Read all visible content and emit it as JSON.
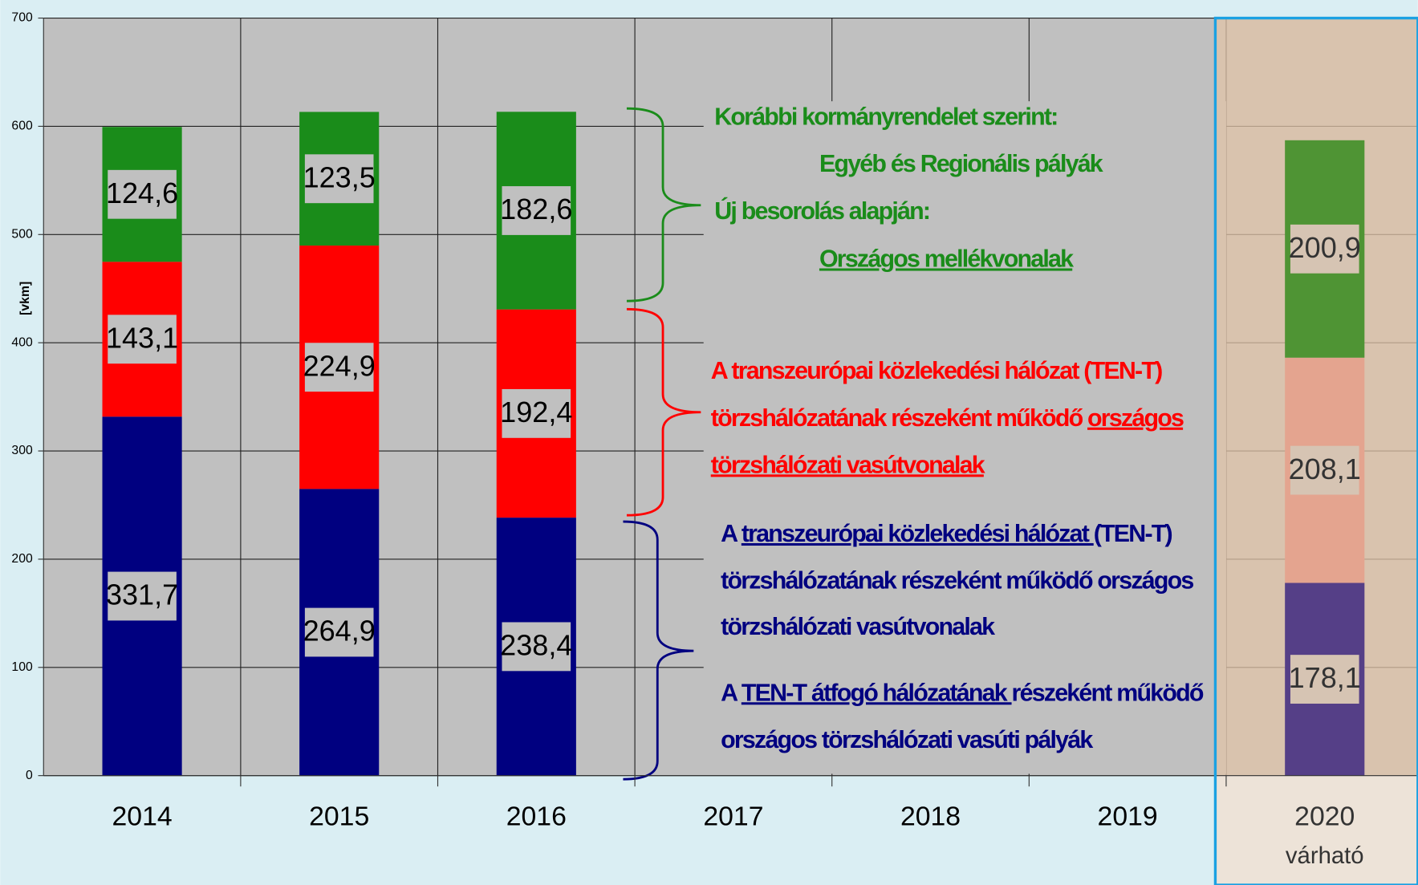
{
  "chart_data": {
    "type": "stacked_bar",
    "y_label": "[vkm]",
    "categories": [
      "2014",
      "2015",
      "2016",
      "2017",
      "2018",
      "2019",
      "2020"
    ],
    "category_sublabels": [
      null,
      null,
      null,
      null,
      null,
      null,
      "várható"
    ],
    "highlight_category": 6,
    "series": [
      {
        "colors": [
          "#000080",
          "#000080",
          "#000080",
          "#000080",
          "#000080",
          "#000080",
          "#553f87"
        ],
        "values": [
          331.7,
          264.9,
          238.4,
          null,
          null,
          null,
          178.1
        ],
        "value_labels": [
          "331,7",
          "264,9",
          "238,4",
          null,
          null,
          null,
          "178,1"
        ]
      },
      {
        "colors": [
          "#ff0000",
          "#ff0000",
          "#ff0000",
          "#ff0000",
          "#ff0000",
          "#ff0000",
          "#e4a48f"
        ],
        "values": [
          143.1,
          224.9,
          192.4,
          null,
          null,
          null,
          208.1
        ],
        "value_labels": [
          "143,1",
          "224,9",
          "192,4",
          null,
          null,
          null,
          "208,1"
        ]
      },
      {
        "colors": [
          "#1a8c1a",
          "#1a8c1a",
          "#1a8c1a",
          "#1a8c1a",
          "#1a8c1a",
          "#1a8c1a",
          "#4f9434"
        ],
        "values": [
          124.6,
          123.5,
          182.6,
          null,
          null,
          null,
          200.9
        ],
        "value_labels": [
          "124,6",
          "123,5",
          "182,6",
          null,
          null,
          null,
          "200,9"
        ]
      }
    ],
    "ylim": [
      0,
      700
    ],
    "yticks": [
      0,
      100,
      200,
      300,
      400,
      500,
      600,
      700
    ],
    "grid": true,
    "annotations": [
      {
        "color": "#1a8c1a",
        "lines": [
          [
            {
              "text": "Korábbi kormányrendelet szerint:"
            }
          ],
          [
            {
              "text": "Egyéb és Regionális pályák"
            }
          ],
          [
            {
              "text": "Új besorolás alapján:"
            }
          ],
          [
            {
              "text": "Országos mellékvonalak",
              "underline": true
            }
          ]
        ]
      },
      {
        "color": "#ff0000",
        "lines": [
          [
            {
              "text": "A transzeurópai közlekedési hálózat (TEN-T)"
            }
          ],
          [
            {
              "text": "törzshálózatának részeként működő "
            },
            {
              "text": "országos",
              "underline": true
            }
          ],
          [
            {
              "text": "törzshálózati vasútvonalak",
              "underline": true
            }
          ]
        ]
      },
      {
        "color": "#000080",
        "lines": [
          [
            {
              "text": "A "
            },
            {
              "text": "transzeurópai közlekedési hálózat ",
              "underline": true
            },
            {
              "text": "(TEN-T)"
            }
          ],
          [
            {
              "text": "törzshálózatának részeként működő országos"
            }
          ],
          [
            {
              "text": "törzshálózati vasútvonalak"
            }
          ],
          [
            {
              "text": "A "
            },
            {
              "text": "TEN-T átfogó hálózatának ",
              "underline": true
            },
            {
              "text": "részeként működő"
            }
          ],
          [
            {
              "text": "országos törzshálózati vasúti pályák"
            }
          ]
        ]
      }
    ]
  }
}
